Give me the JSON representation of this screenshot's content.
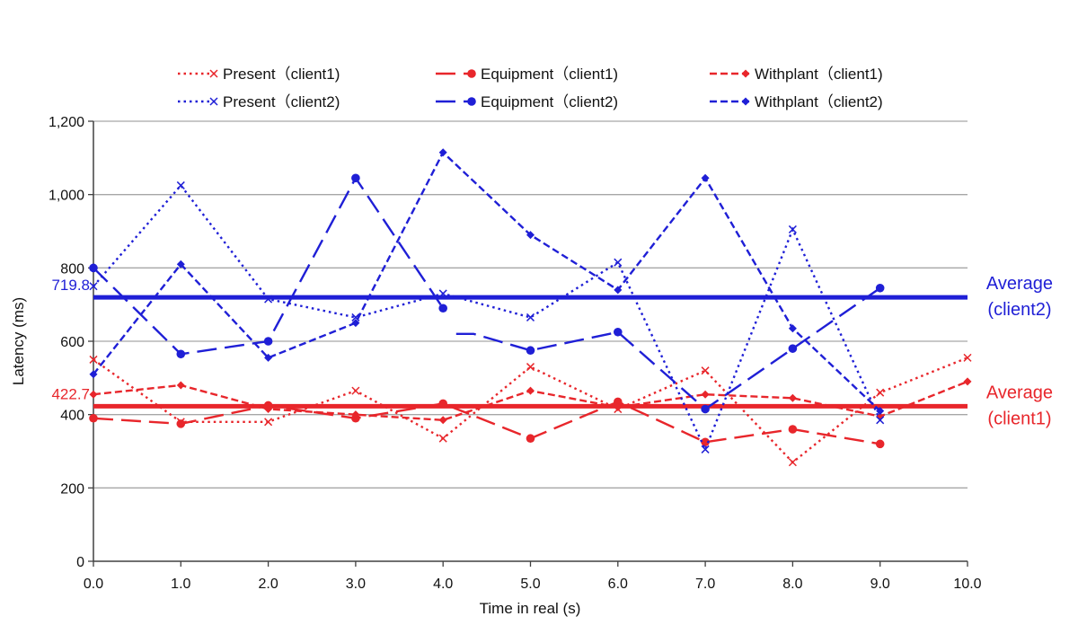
{
  "chart_data": {
    "type": "line",
    "title": "",
    "xlabel": "Time in real (s)",
    "ylabel": "Latency (ms)",
    "xlim": [
      0,
      10
    ],
    "ylim": [
      0,
      1200
    ],
    "x_ticks": [
      "0.0",
      "1.0",
      "2.0",
      "3.0",
      "4.0",
      "5.0",
      "6.0",
      "7.0",
      "8.0",
      "9.0",
      "10.0"
    ],
    "y_ticks": [
      "0",
      "200",
      "400",
      "600",
      "800",
      "1,000",
      "1,200"
    ],
    "grid": true,
    "legend_position": "top",
    "colors": {
      "client1": "#e8262b",
      "client2": "#1f1fd6"
    },
    "series": [
      {
        "name": "Present（client1)",
        "client": "client1",
        "dash": "dotted",
        "marker": "x",
        "x": [
          0,
          1,
          2,
          3,
          4,
          5,
          6,
          7,
          8,
          9,
          10
        ],
        "values": [
          550,
          380,
          380,
          465,
          335,
          530,
          415,
          520,
          270,
          460,
          555
        ]
      },
      {
        "name": "Equipment（client1)",
        "client": "client1",
        "dash": "longdash",
        "marker": "circle",
        "x": [
          0,
          1,
          2,
          3,
          4,
          5,
          6,
          7,
          8,
          9
        ],
        "values": [
          390,
          375,
          425,
          390,
          430,
          335,
          435,
          325,
          360,
          320
        ]
      },
      {
        "name": "Withplant（client1)",
        "client": "client1",
        "dash": "shortdash",
        "marker": "diamond",
        "x": [
          0,
          1,
          2,
          3,
          4,
          5,
          6,
          7,
          8,
          9,
          10
        ],
        "values": [
          455,
          480,
          415,
          400,
          385,
          465,
          420,
          455,
          445,
          395,
          490
        ]
      },
      {
        "name": "Present（client2)",
        "client": "client2",
        "dash": "dotted",
        "marker": "x",
        "x": [
          0,
          1,
          2,
          3,
          4,
          5,
          6,
          7,
          8,
          9
        ],
        "values": [
          750,
          1025,
          715,
          665,
          730,
          665,
          815,
          305,
          905,
          385
        ]
      },
      {
        "name": "Equipment（client2)",
        "client": "client2",
        "dash": "longdash",
        "marker": "circle",
        "segments": [
          {
            "x": [
              0,
              1,
              2,
              3,
              4
            ],
            "values": [
              800,
              565,
              600,
              1045,
              690
            ]
          },
          {
            "x": [
              4.15,
              4.35,
              5,
              6,
              7,
              8,
              9
            ],
            "values": [
              620,
              620,
              575,
              625,
              415,
              580,
              745
            ]
          }
        ]
      },
      {
        "name": "Withplant（client2)",
        "client": "client2",
        "dash": "shortdash",
        "marker": "diamond",
        "x": [
          0,
          1,
          2,
          3,
          4,
          5,
          6,
          7,
          8,
          9
        ],
        "values": [
          510,
          810,
          555,
          650,
          1115,
          890,
          740,
          1045,
          635,
          410
        ]
      }
    ],
    "averages": [
      {
        "client": "client1",
        "value": 422.7,
        "value_label": "422.7",
        "label_line1": "Average",
        "label_line2": "(client1)"
      },
      {
        "client": "client2",
        "value": 719.8,
        "value_label": "719.8",
        "label_line1": "Average",
        "label_line2": "(client2)"
      }
    ]
  }
}
